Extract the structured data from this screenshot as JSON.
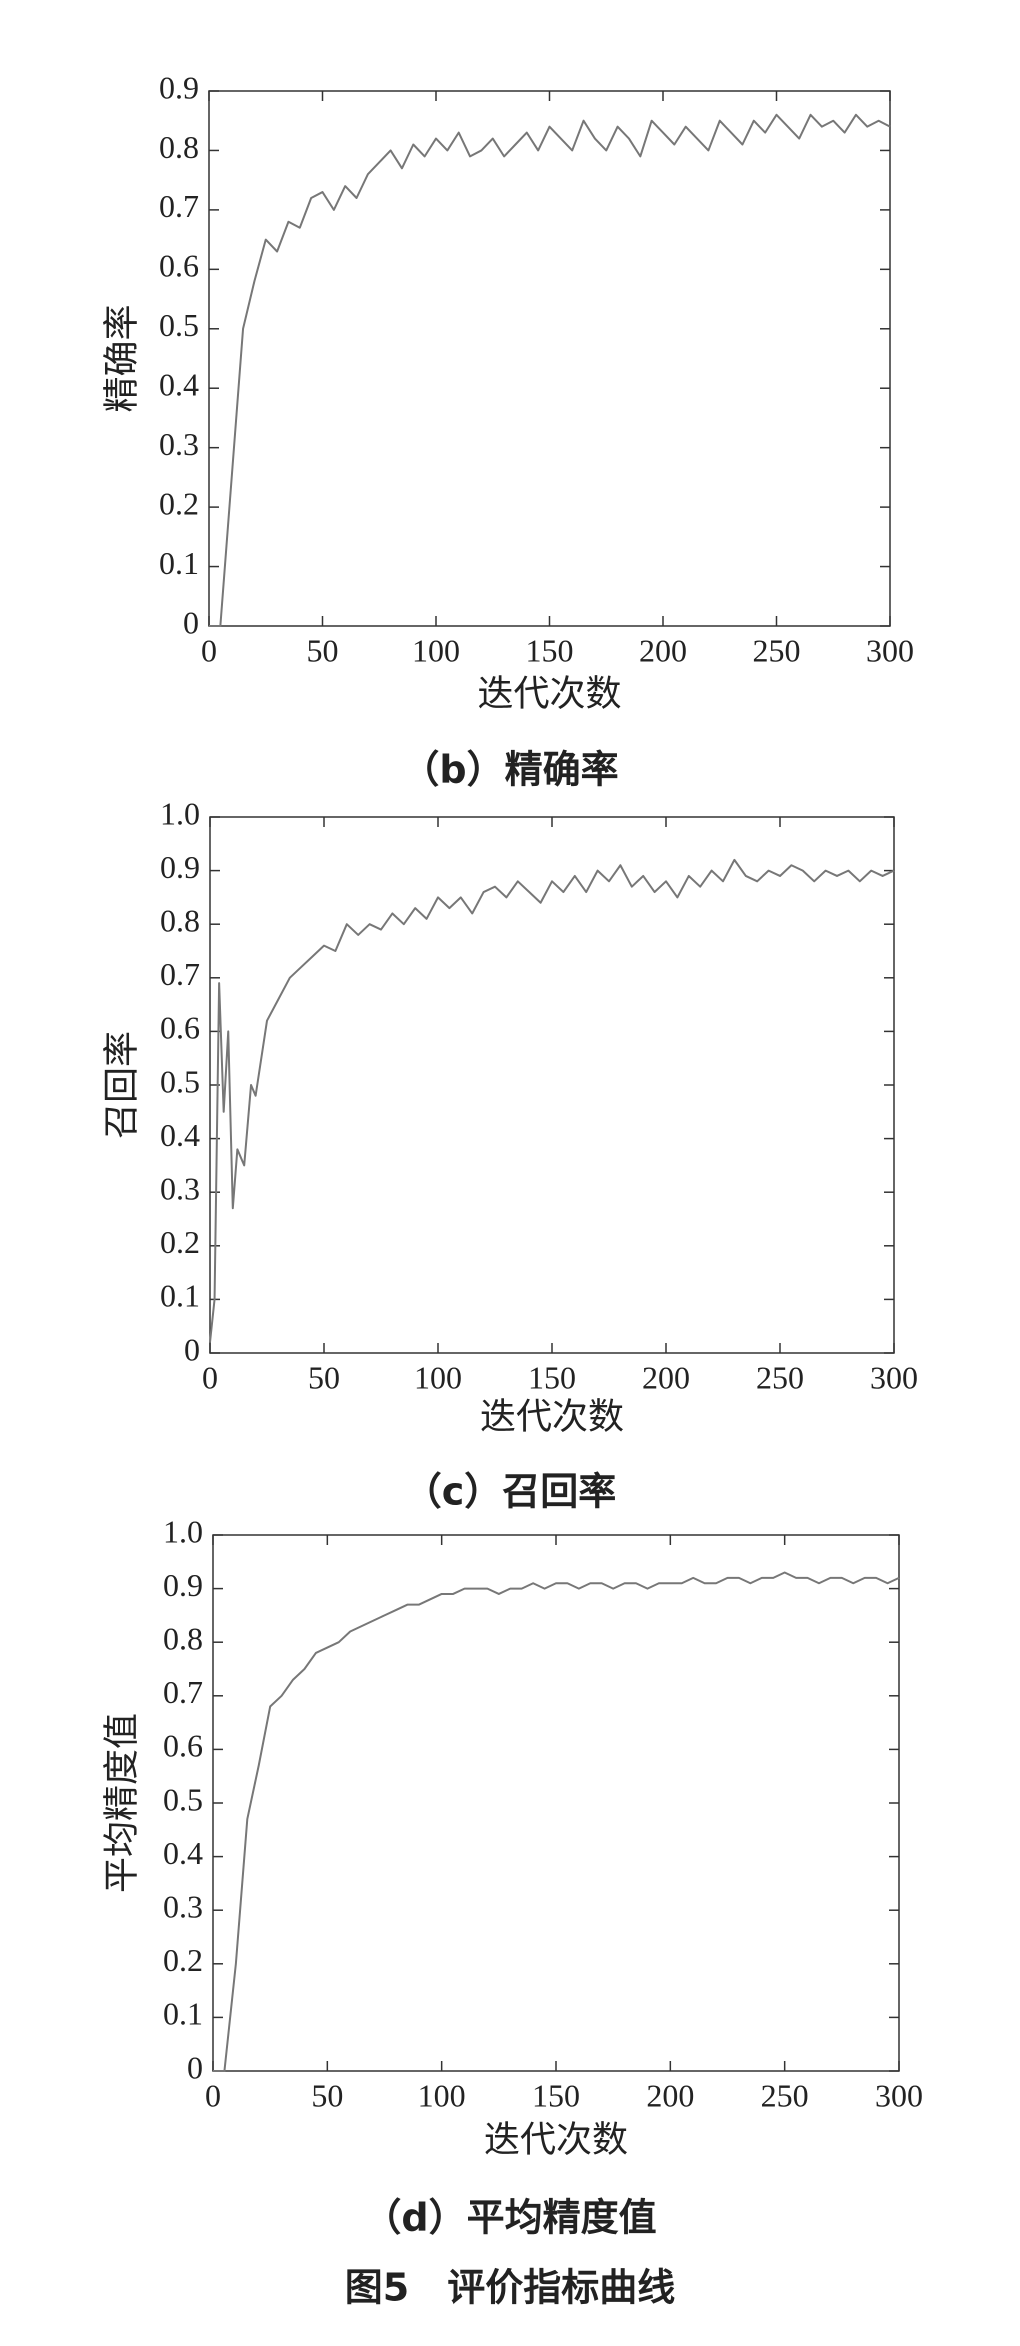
{
  "chart_data": [
    {
      "type": "line",
      "y_label": "精确率",
      "x_label": "迭代次数",
      "caption": "（b）精确率",
      "xlim": [
        0,
        300
      ],
      "xticks": [
        0,
        50,
        100,
        150,
        200,
        250,
        300
      ],
      "ylim": [
        0,
        0.9
      ],
      "yticks": [
        0,
        0.1,
        0.2,
        0.3,
        0.4,
        0.5,
        0.6,
        0.7,
        0.8,
        0.9
      ],
      "color": "#777777",
      "x": [
        0,
        5,
        10,
        15,
        20,
        25,
        30,
        35,
        40,
        45,
        50,
        55,
        60,
        65,
        70,
        75,
        80,
        85,
        90,
        95,
        100,
        105,
        110,
        115,
        120,
        125,
        130,
        135,
        140,
        145,
        150,
        155,
        160,
        165,
        170,
        175,
        180,
        185,
        190,
        195,
        200,
        205,
        210,
        215,
        220,
        225,
        230,
        235,
        240,
        245,
        250,
        255,
        260,
        265,
        270,
        275,
        280,
        285,
        290,
        295,
        300
      ],
      "values": [
        0,
        0,
        0.25,
        0.5,
        0.58,
        0.65,
        0.63,
        0.68,
        0.67,
        0.72,
        0.73,
        0.7,
        0.74,
        0.72,
        0.76,
        0.78,
        0.8,
        0.77,
        0.81,
        0.79,
        0.82,
        0.8,
        0.83,
        0.79,
        0.8,
        0.82,
        0.79,
        0.81,
        0.83,
        0.8,
        0.84,
        0.82,
        0.8,
        0.85,
        0.82,
        0.8,
        0.84,
        0.82,
        0.79,
        0.85,
        0.83,
        0.81,
        0.84,
        0.82,
        0.8,
        0.85,
        0.83,
        0.81,
        0.85,
        0.83,
        0.86,
        0.84,
        0.82,
        0.86,
        0.84,
        0.85,
        0.83,
        0.86,
        0.84,
        0.85,
        0.84
      ]
    },
    {
      "type": "line",
      "y_label": "召回率",
      "x_label": "迭代次数",
      "caption": "（c）召回率",
      "xlim": [
        0,
        300
      ],
      "xticks": [
        0,
        50,
        100,
        150,
        200,
        250,
        300
      ],
      "ylim": [
        0,
        1
      ],
      "yticks": [
        0,
        0.1,
        0.2,
        0.3,
        0.4,
        0.5,
        0.6,
        0.7,
        0.8,
        0.9,
        {
          "value": 1,
          "label": "1.0"
        }
      ],
      "color": "#777777",
      "x": [
        0,
        2,
        4,
        6,
        8,
        10,
        12,
        15,
        18,
        20,
        25,
        30,
        35,
        40,
        45,
        50,
        55,
        60,
        65,
        70,
        75,
        80,
        85,
        90,
        95,
        100,
        105,
        110,
        115,
        120,
        125,
        130,
        135,
        140,
        145,
        150,
        155,
        160,
        165,
        170,
        175,
        180,
        185,
        190,
        195,
        200,
        205,
        210,
        215,
        220,
        225,
        230,
        235,
        240,
        245,
        250,
        255,
        260,
        265,
        270,
        275,
        280,
        285,
        290,
        295,
        300
      ],
      "values": [
        0.02,
        0.1,
        0.69,
        0.45,
        0.6,
        0.27,
        0.38,
        0.35,
        0.5,
        0.48,
        0.62,
        0.66,
        0.7,
        0.72,
        0.74,
        0.76,
        0.75,
        0.8,
        0.78,
        0.8,
        0.79,
        0.82,
        0.8,
        0.83,
        0.81,
        0.85,
        0.83,
        0.85,
        0.82,
        0.86,
        0.87,
        0.85,
        0.88,
        0.86,
        0.84,
        0.88,
        0.86,
        0.89,
        0.86,
        0.9,
        0.88,
        0.91,
        0.87,
        0.89,
        0.86,
        0.88,
        0.85,
        0.89,
        0.87,
        0.9,
        0.88,
        0.92,
        0.89,
        0.88,
        0.9,
        0.89,
        0.91,
        0.9,
        0.88,
        0.9,
        0.89,
        0.9,
        0.88,
        0.9,
        0.89,
        0.9
      ]
    },
    {
      "type": "line",
      "y_label": "平均精度值",
      "x_label": "迭代次数",
      "caption": "（d）平均精度值",
      "xlim": [
        0,
        300
      ],
      "xticks": [
        0,
        50,
        100,
        150,
        200,
        250,
        300
      ],
      "ylim": [
        0,
        1
      ],
      "yticks": [
        0,
        0.1,
        0.2,
        0.3,
        0.4,
        0.5,
        0.6,
        0.7,
        0.8,
        0.9,
        {
          "value": 1,
          "label": "1.0"
        }
      ],
      "color": "#777777",
      "x": [
        0,
        5,
        10,
        15,
        20,
        25,
        30,
        35,
        40,
        45,
        50,
        55,
        60,
        65,
        70,
        75,
        80,
        85,
        90,
        95,
        100,
        105,
        110,
        115,
        120,
        125,
        130,
        135,
        140,
        145,
        150,
        155,
        160,
        165,
        170,
        175,
        180,
        185,
        190,
        195,
        200,
        205,
        210,
        215,
        220,
        225,
        230,
        235,
        240,
        245,
        250,
        255,
        260,
        265,
        270,
        275,
        280,
        285,
        290,
        295,
        300
      ],
      "values": [
        0,
        0,
        0.2,
        0.47,
        0.57,
        0.68,
        0.7,
        0.73,
        0.75,
        0.78,
        0.79,
        0.8,
        0.82,
        0.83,
        0.84,
        0.85,
        0.86,
        0.87,
        0.87,
        0.88,
        0.89,
        0.89,
        0.9,
        0.9,
        0.9,
        0.89,
        0.9,
        0.9,
        0.91,
        0.9,
        0.91,
        0.91,
        0.9,
        0.91,
        0.91,
        0.9,
        0.91,
        0.91,
        0.9,
        0.91,
        0.91,
        0.91,
        0.92,
        0.91,
        0.91,
        0.92,
        0.92,
        0.91,
        0.92,
        0.92,
        0.93,
        0.92,
        0.92,
        0.91,
        0.92,
        0.92,
        0.91,
        0.92,
        0.92,
        0.91,
        0.92
      ]
    }
  ],
  "figure_caption": "图5　评价指标曲线"
}
